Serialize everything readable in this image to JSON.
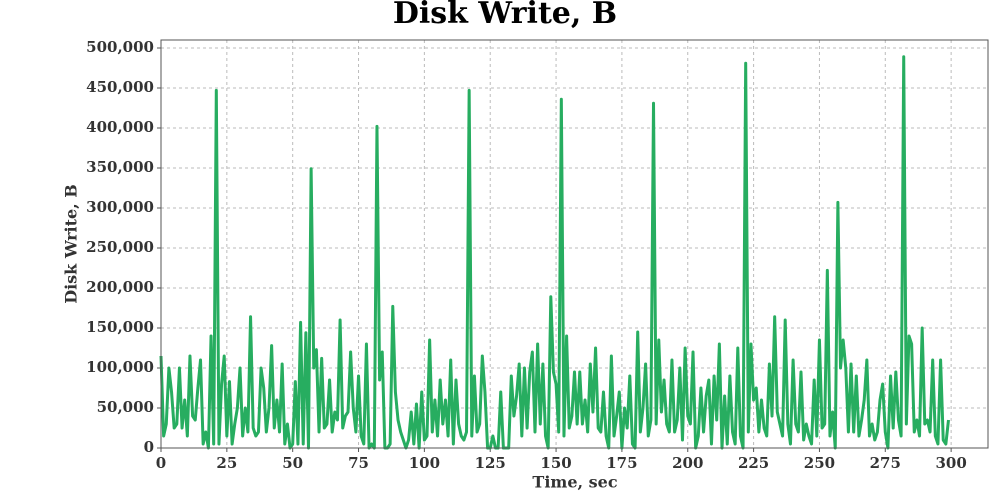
{
  "chart_data": {
    "type": "line",
    "title": "Disk Write, B",
    "x_label": "Time, sec",
    "y_label": "Disk Write, B",
    "color": "#27ad60",
    "grid": true,
    "xlim": [
      0,
      314
    ],
    "ylim": [
      0,
      510000
    ],
    "xticks": [
      0,
      25,
      50,
      75,
      100,
      125,
      150,
      175,
      200,
      225,
      250,
      275,
      300
    ],
    "yticks": [
      0,
      {
        "value": 50000,
        "label": "50,000"
      },
      {
        "value": 100000,
        "label": "100,000"
      },
      {
        "value": 150000,
        "label": "150,000"
      },
      {
        "value": 200000,
        "label": "200,000"
      },
      {
        "value": 250000,
        "label": "250,000"
      },
      {
        "value": 300000,
        "label": "300,000"
      },
      {
        "value": 350000,
        "label": "350,000"
      },
      {
        "value": 400000,
        "label": "400,000"
      },
      {
        "value": 450000,
        "label": "450,000"
      },
      {
        "value": 500000,
        "label": "500,000"
      }
    ],
    "x": [
      0,
      1,
      2,
      3,
      4,
      5,
      6,
      7,
      8,
      9,
      10,
      11,
      12,
      13,
      14,
      15,
      16,
      17,
      18,
      19,
      20,
      21,
      22,
      23,
      24,
      25,
      26,
      27,
      28,
      29,
      30,
      31,
      32,
      33,
      34,
      35,
      36,
      37,
      38,
      39,
      40,
      41,
      42,
      43,
      44,
      45,
      46,
      47,
      48,
      49,
      50,
      51,
      52,
      53,
      54,
      55,
      56,
      57,
      58,
      59,
      60,
      61,
      62,
      63,
      64,
      65,
      66,
      67,
      68,
      69,
      70,
      71,
      72,
      73,
      74,
      75,
      76,
      77,
      78,
      79,
      80,
      81,
      82,
      83,
      84,
      85,
      86,
      87,
      88,
      89,
      90,
      91,
      92,
      93,
      94,
      95,
      96,
      97,
      98,
      99,
      100,
      101,
      102,
      103,
      104,
      105,
      106,
      107,
      108,
      109,
      110,
      111,
      112,
      113,
      114,
      115,
      116,
      117,
      118,
      119,
      120,
      121,
      122,
      123,
      124,
      125,
      126,
      127,
      128,
      129,
      130,
      131,
      132,
      133,
      134,
      135,
      136,
      137,
      138,
      139,
      140,
      141,
      142,
      143,
      144,
      145,
      146,
      147,
      148,
      149,
      150,
      151,
      152,
      153,
      154,
      155,
      156,
      157,
      158,
      159,
      160,
      161,
      162,
      163,
      164,
      165,
      166,
      167,
      168,
      169,
      170,
      171,
      172,
      173,
      174,
      175,
      176,
      177,
      178,
      179,
      180,
      181,
      182,
      183,
      184,
      185,
      186,
      187,
      188,
      189,
      190,
      191,
      192,
      193,
      194,
      195,
      196,
      197,
      198,
      199,
      200,
      201,
      202,
      203,
      204,
      205,
      206,
      207,
      208,
      209,
      210,
      211,
      212,
      213,
      214,
      215,
      216,
      217,
      218,
      219,
      220,
      221,
      222,
      223,
      224,
      225,
      226,
      227,
      228,
      229,
      230,
      231,
      232,
      233,
      234,
      235,
      236,
      237,
      238,
      239,
      240,
      241,
      242,
      243,
      244,
      245,
      246,
      247,
      248,
      249,
      250,
      251,
      252,
      253,
      254,
      255,
      256,
      257,
      258,
      259,
      260,
      261,
      262,
      263,
      264,
      265,
      266,
      267,
      268,
      269,
      270,
      271,
      272,
      273,
      274,
      275,
      276,
      277,
      278,
      279,
      280,
      281,
      282,
      283,
      284,
      285,
      286,
      287,
      288,
      289,
      290,
      291,
      292,
      293,
      294,
      295,
      296,
      297,
      298,
      299
    ],
    "values": [
      115000,
      15000,
      30000,
      100000,
      70000,
      25000,
      30000,
      100000,
      25000,
      60000,
      15000,
      115000,
      40000,
      35000,
      75000,
      110000,
      5000,
      20000,
      0,
      140000,
      5000,
      447000,
      5000,
      80000,
      115000,
      15000,
      83000,
      5000,
      30000,
      50000,
      100000,
      15000,
      50000,
      20000,
      164000,
      25000,
      15000,
      20000,
      100000,
      75000,
      20000,
      50000,
      128000,
      25000,
      60000,
      20000,
      105000,
      5000,
      30000,
      0,
      5000,
      83000,
      5000,
      157000,
      5000,
      144000,
      0,
      349000,
      100000,
      123000,
      20000,
      112000,
      25000,
      30000,
      85000,
      20000,
      45000,
      35000,
      160000,
      25000,
      40000,
      45000,
      120000,
      50000,
      20000,
      90000,
      15000,
      5000,
      130000,
      0,
      5000,
      0,
      402000,
      85000,
      120000,
      0,
      0,
      5000,
      177000,
      70000,
      35000,
      20000,
      10000,
      0,
      10000,
      45000,
      5000,
      55000,
      0,
      70000,
      10000,
      15000,
      135000,
      20000,
      60000,
      15000,
      85000,
      30000,
      60000,
      15000,
      110000,
      5000,
      85000,
      30000,
      15000,
      10000,
      20000,
      447000,
      15000,
      90000,
      20000,
      30000,
      115000,
      70000,
      0,
      0,
      15000,
      0,
      0,
      70000,
      0,
      0,
      0,
      90000,
      40000,
      65000,
      105000,
      15000,
      100000,
      25000,
      95000,
      120000,
      20000,
      130000,
      30000,
      105000,
      15000,
      0,
      189000,
      95000,
      80000,
      20000,
      436000,
      15000,
      140000,
      25000,
      40000,
      95000,
      30000,
      95000,
      30000,
      60000,
      20000,
      105000,
      45000,
      125000,
      25000,
      20000,
      70000,
      15000,
      0,
      115000,
      15000,
      40000,
      70000,
      0,
      50000,
      25000,
      90000,
      5000,
      0,
      145000,
      20000,
      50000,
      105000,
      15000,
      35000,
      431000,
      30000,
      135000,
      45000,
      85000,
      30000,
      20000,
      110000,
      20000,
      35000,
      100000,
      10000,
      125000,
      40000,
      30000,
      120000,
      0,
      15000,
      75000,
      20000,
      65000,
      85000,
      5000,
      90000,
      35000,
      130000,
      0,
      65000,
      5000,
      90000,
      20000,
      5000,
      125000,
      15000,
      0,
      481000,
      20000,
      130000,
      60000,
      75000,
      20000,
      60000,
      25000,
      15000,
      105000,
      40000,
      164000,
      45000,
      30000,
      15000,
      160000,
      30000,
      5000,
      110000,
      30000,
      20000,
      95000,
      10000,
      30000,
      15000,
      5000,
      85000,
      15000,
      135000,
      25000,
      30000,
      222000,
      15000,
      45000,
      0,
      307000,
      100000,
      135000,
      100000,
      20000,
      105000,
      20000,
      90000,
      15000,
      35000,
      60000,
      110000,
      15000,
      30000,
      10000,
      20000,
      60000,
      80000,
      20000,
      0,
      90000,
      25000,
      95000,
      35000,
      15000,
      489000,
      30000,
      140000,
      130000,
      20000,
      35000,
      15000,
      150000,
      30000,
      35000,
      20000,
      110000,
      15000,
      5000,
      110000,
      10000,
      5000,
      35000
    ]
  }
}
